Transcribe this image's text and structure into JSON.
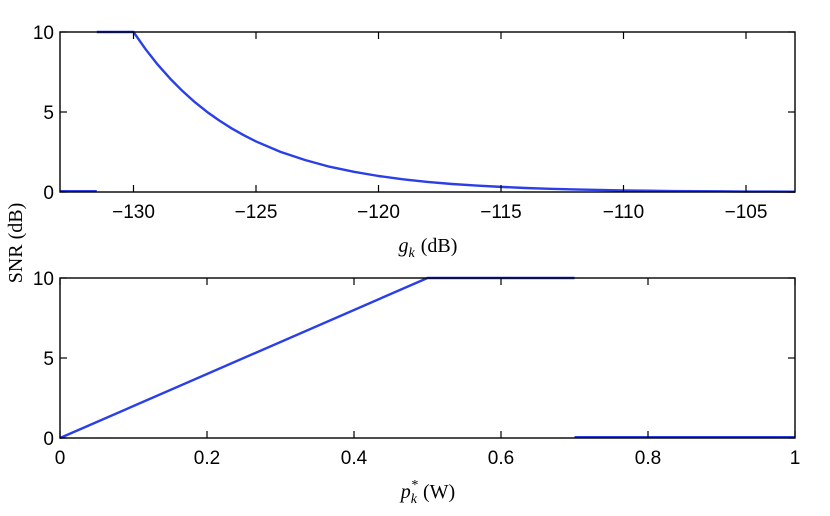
{
  "chart_data": [
    {
      "type": "line",
      "ylabel": "SNR (dB)",
      "xlabel_main": "g",
      "xlabel_sub": "k",
      "xlabel_unit": "(dB)",
      "xlim": [
        -133,
        -103
      ],
      "ylim": [
        0,
        10
      ],
      "xticks": [
        -130,
        -125,
        -120,
        -115,
        -110,
        -105
      ],
      "xtick_labels": [
        "−130",
        "−125",
        "−120",
        "−115",
        "−110",
        "−105"
      ],
      "yticks": [
        0,
        5,
        10
      ],
      "ytick_labels": [
        "0",
        "5",
        "10"
      ],
      "grid": false,
      "series": [
        {
          "color": "#2b3fe8",
          "segments": [
            {
              "x": [
                -133,
                -131.5
              ],
              "y": [
                0.05,
                0.05
              ]
            },
            {
              "x": [
                -131.5,
                -130,
                -129.5,
                -129,
                -128.5,
                -128,
                -127.5,
                -127,
                -126.5,
                -126,
                -125.5,
                -125,
                -124,
                -123,
                -122,
                -121,
                -120,
                -119,
                -118,
                -117,
                -116,
                -115,
                -114,
                -113,
                -112,
                -111,
                -110,
                -109,
                -108,
                -107,
                -106,
                -105,
                -104,
                -103
              ],
              "y": [
                10,
                10,
                8.91,
                7.94,
                7.08,
                6.31,
                5.62,
                5.01,
                4.47,
                3.98,
                3.55,
                3.16,
                2.51,
                2.0,
                1.58,
                1.26,
                1.0,
                0.79,
                0.63,
                0.5,
                0.4,
                0.32,
                0.25,
                0.2,
                0.16,
                0.13,
                0.1,
                0.08,
                0.06,
                0.05,
                0.04,
                0.03,
                0.03,
                0.02
              ]
            }
          ]
        }
      ]
    },
    {
      "type": "line",
      "xlabel_main": "p",
      "xlabel_sub": "k",
      "xlabel_sup": "*",
      "xlabel_unit": "(W)",
      "xlim": [
        0,
        1
      ],
      "ylim": [
        0,
        10
      ],
      "xticks": [
        0,
        0.2,
        0.4,
        0.6,
        0.8,
        1
      ],
      "xtick_labels": [
        "0",
        "0.2",
        "0.4",
        "0.6",
        "0.8",
        "1"
      ],
      "yticks": [
        0,
        5,
        10
      ],
      "ytick_labels": [
        "0",
        "5",
        "10"
      ],
      "grid": false,
      "series": [
        {
          "color": "#2b3fe8",
          "segments": [
            {
              "x": [
                0,
                0.5,
                0.7
              ],
              "y": [
                0,
                10,
                10
              ]
            },
            {
              "x": [
                0.7,
                1.0
              ],
              "y": [
                0.05,
                0.05
              ]
            }
          ]
        }
      ]
    }
  ]
}
